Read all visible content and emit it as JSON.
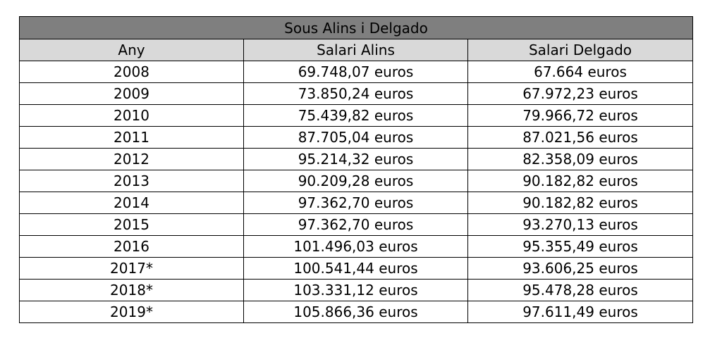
{
  "chart_data": {
    "type": "table",
    "title": "Sous Alins i Delgado",
    "columns": [
      "Any",
      "Salari Alins",
      "Salari Delgado"
    ],
    "rows": [
      [
        "2008",
        "69.748,07 euros",
        "67.664 euros"
      ],
      [
        "2009",
        "73.850,24 euros",
        "67.972,23 euros"
      ],
      [
        "2010",
        "75.439,82 euros",
        "79.966,72 euros"
      ],
      [
        "2011",
        "87.705,04 euros",
        "87.021,56 euros"
      ],
      [
        "2012",
        "95.214,32 euros",
        "82.358,09 euros"
      ],
      [
        "2013",
        "90.209,28 euros",
        "90.182,82 euros"
      ],
      [
        "2014",
        "97.362,70 euros",
        "90.182,82 euros"
      ],
      [
        "2015",
        "97.362,70 euros",
        "93.270,13 euros"
      ],
      [
        "2016",
        "101.496,03 euros",
        "95.355,49 euros"
      ],
      [
        "2017*",
        "100.541,44 euros",
        "93.606,25 euros"
      ],
      [
        "2018*",
        "103.331,12 euros",
        "95.478,28 euros"
      ],
      [
        "2019*",
        "105.866,36 euros",
        "97.611,49 euros"
      ]
    ],
    "colors": {
      "title_bg": "#7f7f7f",
      "header_bg": "#d9d9d9",
      "border": "#000000"
    }
  }
}
